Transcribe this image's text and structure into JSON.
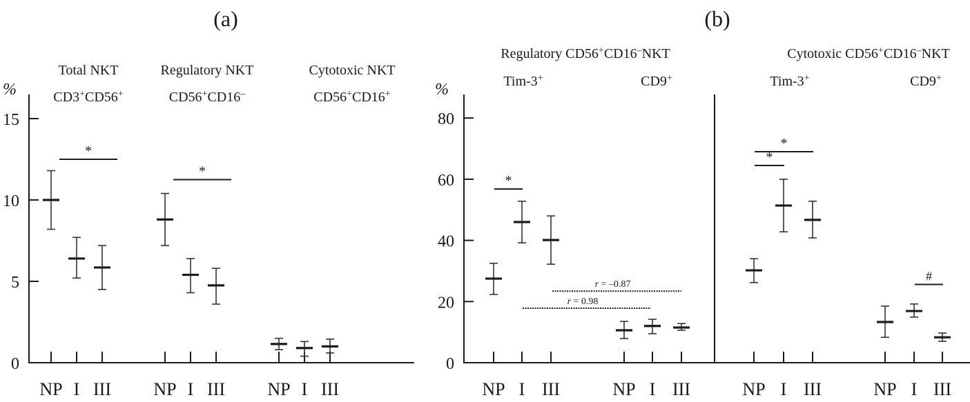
{
  "chart_data": [
    {
      "panel": "(a)",
      "type": "errorbar",
      "ylabel": "%",
      "ylim": [
        0,
        16
      ],
      "yticks": [
        0,
        5,
        10,
        15
      ],
      "groups": [
        {
          "title_line1": "Total NKT",
          "title_line2": {
            "base1": "CD3",
            "sup1": "+",
            "base2": "CD56",
            "sup2": "+"
          },
          "categories": [
            "NP",
            "I",
            "III"
          ],
          "mean": [
            10.0,
            6.4,
            5.85
          ],
          "upper": [
            11.8,
            7.7,
            7.2
          ],
          "lower": [
            8.2,
            5.2,
            4.5
          ],
          "significance": [
            {
              "from": "NP",
              "to": "III",
              "label": "*",
              "y": 12.5
            }
          ]
        },
        {
          "title_line1": "Regulatory NKT",
          "title_line2": {
            "base1": "CD56",
            "sup1": "+",
            "base2": "CD16",
            "sup2": "–"
          },
          "categories": [
            "NP",
            "I",
            "III"
          ],
          "mean": [
            8.8,
            5.4,
            4.75
          ],
          "upper": [
            10.4,
            6.4,
            5.8
          ],
          "lower": [
            7.2,
            4.3,
            3.6
          ],
          "significance": [
            {
              "from": "NP",
              "to": "III",
              "label": "*",
              "y": 11.25
            }
          ]
        },
        {
          "title_line1": "Cytotoxic NKT",
          "title_line2": {
            "base1": "CD56",
            "sup1": "+",
            "base2": "CD16",
            "sup2": "+"
          },
          "categories": [
            "NP",
            "I",
            "III"
          ],
          "mean": [
            1.15,
            0.9,
            1.0
          ],
          "upper": [
            1.5,
            1.3,
            1.45
          ],
          "lower": [
            0.8,
            0.4,
            0.6
          ],
          "significance": []
        }
      ]
    },
    {
      "panel": "(b)",
      "type": "errorbar",
      "ylabel": "%",
      "ylim": [
        0,
        88
      ],
      "yticks": [
        0,
        20,
        40,
        60,
        80
      ],
      "sections": [
        {
          "title": {
            "pre": "Regulatory CD56",
            "sup1": "+",
            "mid": "CD16",
            "sup2": "–",
            "post": "NKT"
          },
          "groups": [
            {
              "label": {
                "base": "Tim-3",
                "sup": "+"
              },
              "categories": [
                "NP",
                "I",
                "III"
              ],
              "mean": [
                27.5,
                46.0,
                40.1
              ],
              "upper": [
                32.5,
                52.8,
                48.0
              ],
              "lower": [
                22.3,
                39.2,
                32.2
              ]
            },
            {
              "label": {
                "base": "CD9",
                "sup": "+"
              },
              "categories": [
                "NP",
                "I",
                "III"
              ],
              "mean": [
                10.6,
                12.0,
                11.5
              ],
              "upper": [
                13.5,
                14.2,
                12.8
              ],
              "lower": [
                7.9,
                9.5,
                10.6
              ]
            }
          ],
          "significance": [
            {
              "group": 0,
              "from": "NP",
              "to": "I",
              "label": "*",
              "y": 56.8
            }
          ],
          "correlations": [
            {
              "label_r": "r",
              "label_rest": " = –0.87",
              "y": 23.4
            },
            {
              "label_r": "r",
              "label_rest": " = 0.98",
              "y": 17.8
            }
          ]
        },
        {
          "title": {
            "pre": "Cytotoxic CD56",
            "sup1": "+",
            "mid": "CD16",
            "sup2": "–",
            "post": "NKT"
          },
          "groups": [
            {
              "label": {
                "base": "Tim-3",
                "sup": "+"
              },
              "categories": [
                "NP",
                "I",
                "III"
              ],
              "mean": [
                30.2,
                51.4,
                46.7
              ],
              "upper": [
                34.0,
                60.0,
                52.8
              ],
              "lower": [
                26.2,
                42.8,
                40.8
              ]
            },
            {
              "label": {
                "base": "CD9",
                "sup": "+"
              },
              "categories": [
                "NP",
                "I",
                "III"
              ],
              "mean": [
                13.3,
                16.9,
                8.3
              ],
              "upper": [
                18.5,
                19.2,
                9.7
              ],
              "lower": [
                8.3,
                14.9,
                7.0
              ]
            }
          ],
          "significance": [
            {
              "group": 0,
              "from": "NP",
              "to": "III",
              "label": "*",
              "y": 69.0
            },
            {
              "group": 0,
              "from": "NP",
              "to": "I",
              "label": "*",
              "y": 64.5
            },
            {
              "group": 1,
              "from": "I",
              "to": "III",
              "label": "#",
              "y": 25.6
            }
          ]
        }
      ]
    }
  ]
}
